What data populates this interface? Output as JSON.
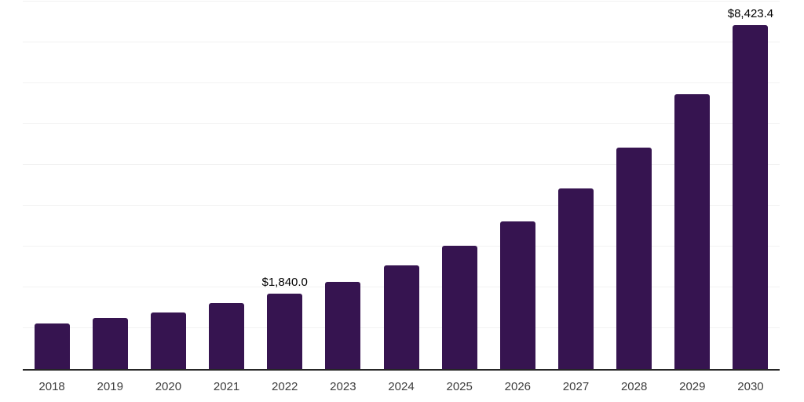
{
  "chart_data": {
    "type": "bar",
    "title": "",
    "xlabel": "",
    "ylabel": "",
    "categories": [
      "2018",
      "2019",
      "2020",
      "2021",
      "2022",
      "2023",
      "2024",
      "2025",
      "2026",
      "2027",
      "2028",
      "2029",
      "2030"
    ],
    "values": [
      1120,
      1260,
      1380,
      1620,
      1840,
      2140,
      2530,
      3020,
      3620,
      4420,
      5430,
      6740,
      8423.4
    ],
    "annotations": [
      {
        "index": 4,
        "text": "$1,840.0"
      },
      {
        "index": 12,
        "text": "$8,423.4"
      }
    ],
    "ylim": [
      0,
      9000
    ],
    "gridline_step": 1000,
    "grid": "horizontal",
    "legend": "none",
    "y_axis_labels_visible": false
  },
  "colors": {
    "bar": "#361450",
    "gridline": "#f2f2f2",
    "axis": "#262626",
    "tick_label": "#3d3d3d",
    "value_label": "#000000",
    "background": "#ffffff"
  }
}
